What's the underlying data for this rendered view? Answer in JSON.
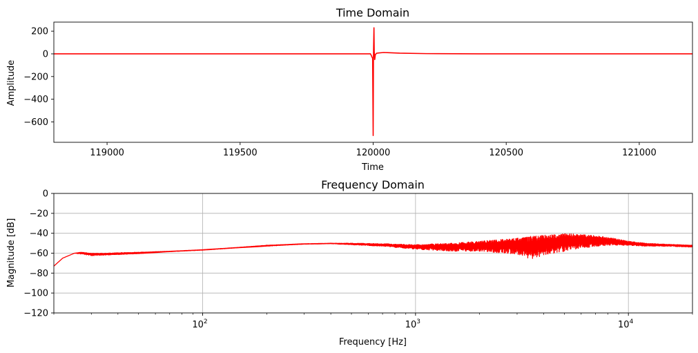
{
  "colors": {
    "line": "#ff0000",
    "grid": "#b0b0b0",
    "axes": "#000000",
    "background": "#ffffff"
  },
  "chart_data": [
    {
      "type": "line",
      "title": "Time Domain",
      "xlabel": "Time",
      "ylabel": "Amplitude",
      "xlim": [
        118800,
        121200
      ],
      "ylim": [
        -780,
        280
      ],
      "x_scale": "linear",
      "grid": false,
      "xticks": [
        119000,
        119500,
        120000,
        120500,
        121000
      ],
      "xtick_labels": [
        "119000",
        "119500",
        "120000",
        "120500",
        "121000"
      ],
      "yticks": [
        200,
        0,
        -200,
        -400,
        -600
      ],
      "ytick_labels": [
        "200",
        "0",
        "−200",
        "−400",
        "−600"
      ],
      "series": [
        {
          "color": "#ff0000",
          "x": [
            118800,
            119900,
            119990,
            119998,
            120000,
            120001,
            120003,
            120004,
            120006,
            120008,
            120012,
            120020,
            120040,
            120060,
            120100,
            120200,
            120400,
            121200
          ],
          "y": [
            0,
            0,
            0,
            -40,
            -720,
            -30,
            230,
            20,
            -50,
            -10,
            5,
            8,
            12,
            10,
            6,
            2,
            0,
            0
          ]
        }
      ]
    },
    {
      "type": "line",
      "title": "Frequency Domain",
      "xlabel": "Frequency [Hz]",
      "ylabel": "Magnitude [dB]",
      "xlim": [
        20,
        20000
      ],
      "ylim": [
        -120,
        0
      ],
      "x_scale": "log",
      "grid": true,
      "xticks": [
        100,
        1000,
        10000
      ],
      "xtick_labels": [
        {
          "base": "10",
          "exp": "2"
        },
        {
          "base": "10",
          "exp": "3"
        },
        {
          "base": "10",
          "exp": "4"
        }
      ],
      "yticks": [
        0,
        -20,
        -40,
        -60,
        -80,
        -100,
        -120
      ],
      "ytick_labels": [
        "0",
        "−20",
        "−40",
        "−60",
        "−80",
        "−100",
        "−120"
      ],
      "series": [
        {
          "color": "#ff0000",
          "envelope": {
            "x": [
              20,
              22,
              25,
              27,
              30,
              35,
              40,
              50,
              70,
              100,
              150,
              200,
              300,
              400,
              500,
              700,
              1000,
              1500,
              2000,
              3000,
              3500,
              4000,
              5000,
              6000,
              8000,
              10000,
              12000,
              15000,
              20000
            ],
            "y_upper": [
              -73,
              -65,
              -60,
              -59,
              -60,
              -60,
              -59.5,
              -59,
              -58,
              -56.5,
              -54,
              -52,
              -50.5,
              -50,
              -50,
              -50.5,
              -51.5,
              -50,
              -48,
              -45,
              -43,
              -42,
              -40.5,
              -41,
              -44,
              -48,
              -50,
              -51,
              -52
            ],
            "y_lower": [
              -73,
              -65,
              -60,
              -61,
              -62.5,
              -62,
              -61.5,
              -60.5,
              -58.5,
              -57,
              -54.5,
              -53,
              -51,
              -50.5,
              -51.5,
              -53,
              -56,
              -58,
              -58,
              -61,
              -66,
              -62,
              -58,
              -55,
              -52,
              -52,
              -53,
              -53,
              -54
            ]
          }
        }
      ]
    }
  ]
}
